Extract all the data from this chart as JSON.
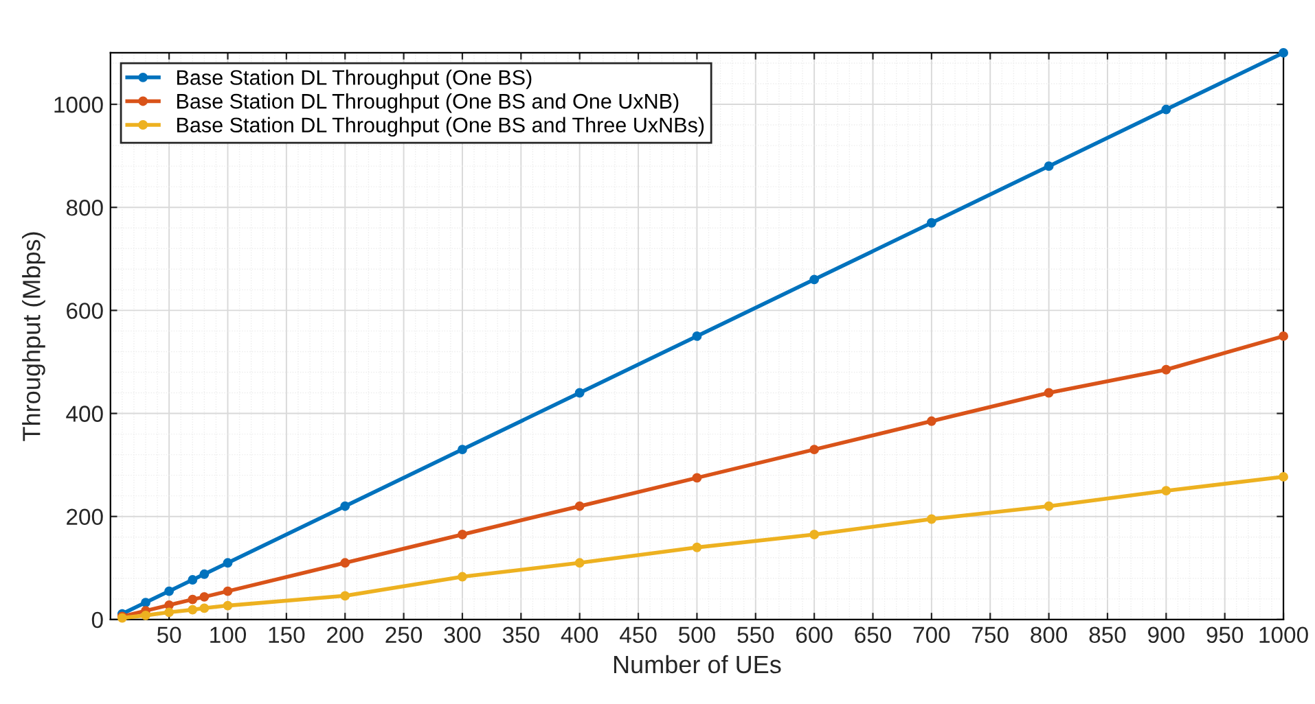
{
  "chart_data": {
    "type": "line",
    "xlabel": "Number of UEs",
    "ylabel": "Throughput (Mbps)",
    "x": [
      10,
      30,
      50,
      70,
      80,
      100,
      200,
      300,
      400,
      500,
      600,
      700,
      800,
      900,
      1000
    ],
    "series": [
      {
        "name": "Base Station DL Throughput (One BS)",
        "color": "#0072bd",
        "values": [
          11,
          33,
          55,
          77,
          88,
          110,
          220,
          330,
          440,
          550,
          660,
          770,
          880,
          990,
          1100
        ]
      },
      {
        "name": "Base Station DL Throughput (One BS and One UxNB)",
        "color": "#d95319",
        "values": [
          6,
          17,
          28,
          39,
          44,
          55,
          110,
          165,
          220,
          275,
          330,
          385,
          440,
          485,
          550
        ]
      },
      {
        "name": "Base Station DL Throughput (One BS and Three UxNBs)",
        "color": "#edb120",
        "values": [
          3,
          8,
          14,
          19,
          22,
          27,
          46,
          83,
          110,
          140,
          165,
          195,
          220,
          250,
          277
        ]
      }
    ],
    "xlim": [
      0,
      1000
    ],
    "xticks": [
      50,
      100,
      150,
      200,
      250,
      300,
      350,
      400,
      450,
      500,
      550,
      600,
      650,
      700,
      750,
      800,
      850,
      900,
      950,
      1000
    ],
    "ylim": [
      0,
      1100
    ],
    "yticks": [
      0,
      200,
      400,
      600,
      800,
      1000
    ],
    "grid": true,
    "legend": "top left",
    "marker": "circle",
    "line_style": "solid"
  }
}
